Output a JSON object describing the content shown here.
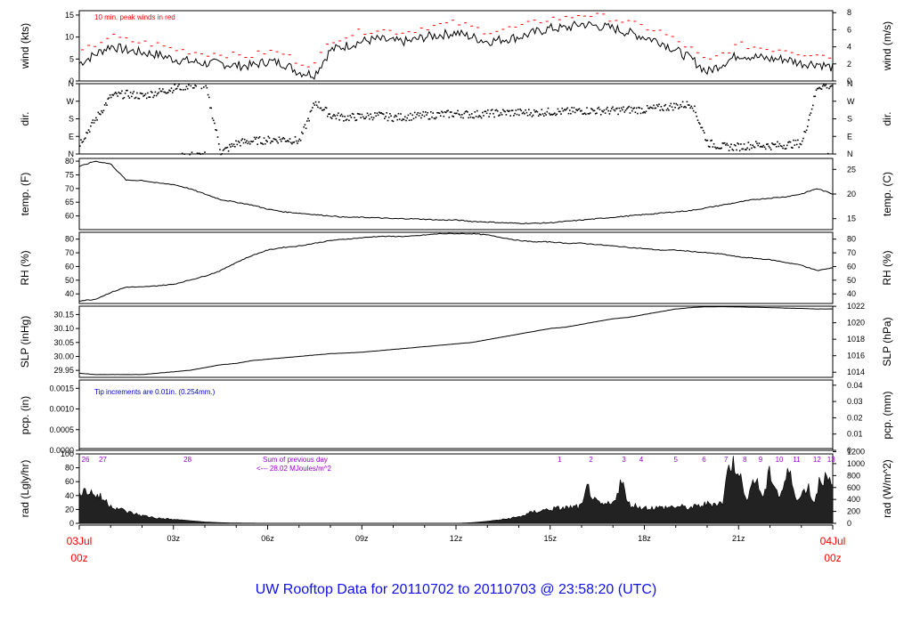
{
  "title": "UW Rooftop Data for 20110702  to  20110703 @ 23:58:20  (UTC)",
  "x_axis": {
    "ticks": [
      "03z",
      "06z",
      "09z",
      "12z",
      "15z",
      "18z",
      "21z"
    ],
    "start_label": [
      "03Jul",
      "00z"
    ],
    "end_label": [
      "04Jul",
      "00z"
    ]
  },
  "colors": {
    "peak": "#ff0000",
    "note": "#0000cc",
    "sun": "#9900cc",
    "daylabel": "#ff0000",
    "title": "#1010ee",
    "line": "#000000"
  },
  "chart_data": [
    {
      "type": "line",
      "name": "wind",
      "ylabel_left": "wind (kts)",
      "ylabel_right": "wind (m/s)",
      "ylim": [
        0,
        16
      ],
      "yticks_left": [
        "0",
        "5",
        "10",
        "15"
      ],
      "yticks_right": [
        "0",
        "2",
        "4",
        "6",
        "8"
      ],
      "annotation": "10 min. peak winds in red",
      "x_hours": [
        0,
        0.5,
        1,
        1.5,
        2,
        2.5,
        3,
        3.5,
        4,
        4.5,
        5,
        5.5,
        6,
        6.5,
        7,
        7.5,
        8,
        8.5,
        9,
        9.5,
        10,
        10.5,
        11,
        11.5,
        12,
        12.5,
        13,
        13.5,
        14,
        14.5,
        15,
        15.5,
        16,
        16.5,
        17,
        17.5,
        18,
        18.5,
        19,
        19.5,
        20,
        20.5,
        21,
        21.5,
        22,
        22.5,
        23,
        23.5,
        24
      ],
      "values": [
        4,
        6,
        8,
        7,
        6.5,
        6,
        5,
        4.5,
        4,
        4,
        3.5,
        3.5,
        4.5,
        4,
        2,
        1.5,
        7,
        8,
        9,
        9.5,
        9,
        9,
        10,
        10.5,
        11,
        10,
        9,
        9.5,
        10,
        11,
        12,
        12,
        13,
        12.5,
        12,
        11,
        10,
        9,
        7,
        5,
        2,
        4,
        6,
        5.5,
        5,
        5,
        4,
        4,
        3
      ]
    },
    {
      "type": "scatter",
      "name": "dir.",
      "ylabel_left": "dir.",
      "ylabel_right": "dir.",
      "yticks_left": [
        "N",
        "E",
        "S",
        "W",
        "N"
      ],
      "yticks_right": [
        "N",
        "E",
        "S",
        "W",
        "N"
      ],
      "ylim": [
        0,
        360
      ],
      "x_hours": [
        0,
        0.5,
        1,
        1.5,
        2,
        2.5,
        3,
        3.5,
        4,
        4.5,
        5,
        5.5,
        6,
        6.5,
        7,
        7.5,
        8,
        8.5,
        9,
        9.5,
        10,
        10.5,
        11,
        11.5,
        12,
        12.5,
        13,
        13.5,
        14,
        14.5,
        15,
        15.5,
        16,
        16.5,
        17,
        17.5,
        18,
        18.5,
        19,
        19.5,
        20,
        20.5,
        21,
        21.5,
        22,
        22.5,
        23,
        23.5,
        24
      ],
      "values": [
        60,
        180,
        300,
        310,
        300,
        320,
        340,
        355,
        355,
        10,
        60,
        70,
        75,
        80,
        70,
        270,
        200,
        190,
        195,
        200,
        190,
        195,
        200,
        205,
        210,
        205,
        210,
        215,
        215,
        215,
        220,
        220,
        225,
        225,
        225,
        230,
        230,
        240,
        250,
        260,
        60,
        40,
        40,
        50,
        45,
        50,
        60,
        350,
        355
      ]
    },
    {
      "type": "line",
      "name": "temp",
      "ylabel_left": "temp. (F)",
      "ylabel_right": "temp. (C)",
      "ylim": [
        55,
        81
      ],
      "yticks_left": [
        "60",
        "65",
        "70",
        "75",
        "80"
      ],
      "yticks_right": [
        "15",
        "20",
        "25"
      ],
      "x_hours": [
        0,
        0.5,
        1,
        1.5,
        2,
        2.5,
        3,
        3.5,
        4,
        4.5,
        5,
        5.5,
        6,
        6.5,
        7,
        7.5,
        8,
        8.5,
        9,
        9.5,
        10,
        10.5,
        11,
        11.5,
        12,
        12.5,
        13,
        13.5,
        14,
        14.5,
        15,
        15.5,
        16,
        16.5,
        17,
        17.5,
        18,
        18.5,
        19,
        19.5,
        20,
        20.5,
        21,
        21.5,
        22,
        22.5,
        23,
        23.5,
        24
      ],
      "values": [
        78,
        80,
        79,
        73,
        73,
        72,
        71.5,
        70,
        68,
        66,
        65,
        64,
        62.5,
        61.5,
        61,
        60.5,
        60,
        59.5,
        59.5,
        59.3,
        59,
        59,
        58.8,
        58.5,
        58.5,
        58,
        57.8,
        57.5,
        57.3,
        57.3,
        57.5,
        58,
        58.5,
        59,
        59.5,
        60,
        60.5,
        61,
        61.5,
        62,
        63,
        64,
        65,
        66,
        66.5,
        67,
        68,
        70,
        68
      ]
    },
    {
      "type": "line",
      "name": "RH",
      "ylabel_left": "RH (%)",
      "ylabel_right": "RH (%)",
      "ylim": [
        33,
        85
      ],
      "yticks_left": [
        "40",
        "50",
        "60",
        "70",
        "80"
      ],
      "yticks_right": [
        "40",
        "50",
        "60",
        "70",
        "80"
      ],
      "x_hours": [
        0,
        0.5,
        1,
        1.5,
        2,
        2.5,
        3,
        3.5,
        4,
        4.5,
        5,
        5.5,
        6,
        6.5,
        7,
        7.5,
        8,
        8.5,
        9,
        9.5,
        10,
        10.5,
        11,
        11.5,
        12,
        12.5,
        13,
        13.5,
        14,
        14.5,
        15,
        15.5,
        16,
        16.5,
        17,
        17.5,
        18,
        18.5,
        19,
        19.5,
        20,
        20.5,
        21,
        21.5,
        22,
        22.5,
        23,
        23.5,
        24
      ],
      "values": [
        35,
        36,
        41,
        45,
        45,
        46,
        47,
        50,
        53,
        57,
        63,
        68,
        72,
        74,
        75,
        77,
        79,
        80,
        81,
        82,
        82,
        82,
        83,
        84,
        84,
        84,
        83,
        81,
        79,
        78,
        78,
        77,
        77,
        76,
        75,
        74,
        73,
        72,
        72,
        71,
        70,
        69,
        67,
        66,
        65,
        63,
        61,
        57,
        59
      ]
    },
    {
      "type": "line",
      "name": "SLP",
      "ylabel_left": "SLP (inHg)",
      "ylabel_right": "SLP (hPa)",
      "ylim": [
        29.925,
        30.18
      ],
      "yticks_left": [
        "29.95",
        "30.00",
        "30.05",
        "30.10",
        "30.15"
      ],
      "yticks_right": [
        "1014",
        "1016",
        "1018",
        "1020",
        "1022"
      ],
      "x_hours": [
        0,
        0.5,
        1,
        1.5,
        2,
        2.5,
        3,
        3.5,
        4,
        4.5,
        5,
        5.5,
        6,
        6.5,
        7,
        7.5,
        8,
        8.5,
        9,
        9.5,
        10,
        10.5,
        11,
        11.5,
        12,
        12.5,
        13,
        13.5,
        14,
        14.5,
        15,
        15.5,
        16,
        16.5,
        17,
        17.5,
        18,
        18.5,
        19,
        19.5,
        20,
        20.5,
        21,
        21.5,
        22,
        22.5,
        23,
        23.5,
        24
      ],
      "values": [
        29.94,
        29.935,
        29.935,
        29.935,
        29.935,
        29.94,
        29.945,
        29.95,
        29.96,
        29.97,
        29.975,
        29.985,
        29.99,
        29.995,
        30.0,
        30.005,
        30.01,
        30.012,
        30.015,
        30.02,
        30.025,
        30.03,
        30.035,
        30.04,
        30.045,
        30.05,
        30.06,
        30.07,
        30.08,
        30.09,
        30.1,
        30.105,
        30.115,
        30.125,
        30.135,
        30.14,
        30.15,
        30.16,
        30.17,
        30.175,
        30.178,
        30.178,
        30.177,
        30.176,
        30.175,
        30.173,
        30.172,
        30.17,
        30.17
      ]
    },
    {
      "type": "line",
      "name": "pcp",
      "ylabel_left": "pcp. (in)",
      "ylabel_right": "pcp. (mm)",
      "ylim": [
        0,
        0.0017
      ],
      "yticks_left": [
        "0.0000",
        "0.0005",
        "0.0010",
        "0.0015"
      ],
      "yticks_right": [
        "0",
        "0.01",
        "0.02",
        "0.03",
        "0.04"
      ],
      "annotation": "Tip increments are 0.01in. (0.254mm.)",
      "x_hours": [
        0,
        24
      ],
      "values": [
        0,
        0
      ]
    },
    {
      "type": "area",
      "name": "rad",
      "ylabel_left": "rad (Lgly/hr)",
      "ylabel_right": "rad (W/m^2)",
      "ylim": [
        0,
        100
      ],
      "yticks_left": [
        "0",
        "20",
        "40",
        "60",
        "80",
        "100"
      ],
      "yticks_right": [
        "0",
        "200",
        "400",
        "600",
        "800",
        "1000",
        "1200"
      ],
      "annotation": [
        "Sum of previous day",
        "<--- 28.02 MJoules/m^2"
      ],
      "sun_labels": [
        "26",
        "27",
        "28",
        "1",
        "2",
        "3",
        "4",
        "5",
        "6",
        "7",
        "8",
        "9",
        "10",
        "11",
        "12",
        "13"
      ],
      "sun_label_hours": [
        0.2,
        0.75,
        3.45,
        15.3,
        16.3,
        17.35,
        17.9,
        19.0,
        19.9,
        20.6,
        21.2,
        21.7,
        22.3,
        22.85,
        23.5,
        23.95
      ],
      "x_hours": [
        0,
        0.25,
        0.5,
        0.75,
        1,
        1.5,
        2,
        2.5,
        3,
        3.5,
        4,
        4.5,
        5,
        6,
        7,
        8,
        9,
        10,
        11,
        12,
        12.5,
        13,
        13.5,
        14,
        14.25,
        14.5,
        14.75,
        15,
        15.5,
        16,
        16.1,
        16.2,
        16.4,
        16.6,
        17,
        17.3,
        17.4,
        17.5,
        17.8,
        18,
        18.5,
        19,
        19.5,
        20,
        20.5,
        20.7,
        20.9,
        21.0,
        21.2,
        21.5,
        21.8,
        22.0,
        22.3,
        22.6,
        22.9,
        23.2,
        23.4,
        23.6,
        23.8,
        24
      ],
      "values": [
        52,
        50,
        45,
        38,
        28,
        18,
        12,
        8,
        6,
        4,
        2,
        1,
        0.5,
        0.2,
        0,
        0,
        0,
        0,
        0,
        0,
        1,
        3,
        6,
        10,
        14,
        18,
        20,
        22,
        24,
        26,
        40,
        58,
        35,
        28,
        30,
        72,
        38,
        30,
        26,
        24,
        24,
        26,
        24,
        30,
        32,
        95,
        90,
        88,
        35,
        70,
        40,
        80,
        40,
        80,
        35,
        60,
        30,
        72,
        68,
        55
      ]
    }
  ]
}
